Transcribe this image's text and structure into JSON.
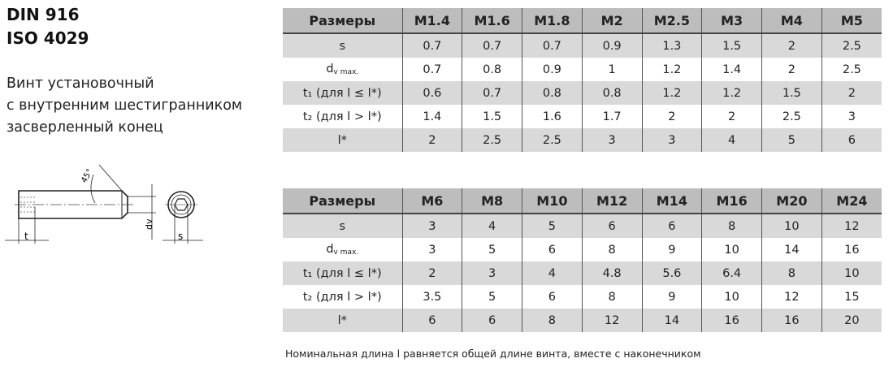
{
  "title_lines": [
    "DIN 916",
    "ISO 4029"
  ],
  "description_lines": [
    "Винт установочный",
    "с внутренним шестигранником",
    "засверленный конец"
  ],
  "drawing": {
    "angle_label": "45°",
    "dim_t": "t",
    "dim_dv": "dv",
    "dim_s": "s"
  },
  "tables": [
    {
      "headers": [
        "Размеры",
        "M1.4",
        "M1.6",
        "M1.8",
        "M2",
        "M2.5",
        "M3",
        "M4",
        "M5"
      ],
      "rows": [
        {
          "label": "s",
          "label_sub": "",
          "values": [
            "0.7",
            "0.7",
            "0.7",
            "0.9",
            "1.3",
            "1.5",
            "2",
            "2.5"
          ]
        },
        {
          "label": "d",
          "label_sub": "v max.",
          "values": [
            "0.7",
            "0.8",
            "0.9",
            "1",
            "1.2",
            "1.4",
            "2",
            "2.5"
          ]
        },
        {
          "label": "t₁ (для l ≤ l*)",
          "label_sub": "",
          "values": [
            "0.6",
            "0.7",
            "0.8",
            "0.8",
            "1.2",
            "1.2",
            "1.5",
            "2"
          ]
        },
        {
          "label": "t₂ (для l > l*)",
          "label_sub": "",
          "values": [
            "1.4",
            "1.5",
            "1.6",
            "1.7",
            "2",
            "2",
            "2.5",
            "3"
          ]
        },
        {
          "label": "l*",
          "label_sub": "",
          "values": [
            "2",
            "2.5",
            "2.5",
            "3",
            "3",
            "4",
            "5",
            "6"
          ]
        }
      ]
    },
    {
      "headers": [
        "Размеры",
        "M6",
        "M8",
        "M10",
        "M12",
        "M14",
        "M16",
        "M20",
        "M24"
      ],
      "rows": [
        {
          "label": "s",
          "label_sub": "",
          "values": [
            "3",
            "4",
            "5",
            "6",
            "6",
            "8",
            "10",
            "12"
          ]
        },
        {
          "label": "d",
          "label_sub": "v max.",
          "values": [
            "3",
            "5",
            "6",
            "8",
            "9",
            "10",
            "14",
            "16"
          ]
        },
        {
          "label": "t₁ (для l ≤ l*)",
          "label_sub": "",
          "values": [
            "2",
            "3",
            "4",
            "4.8",
            "5.6",
            "6.4",
            "8",
            "10"
          ]
        },
        {
          "label": "t₂ (для l > l*)",
          "label_sub": "",
          "values": [
            "3.5",
            "5",
            "6",
            "8",
            "9",
            "10",
            "12",
            "15"
          ]
        },
        {
          "label": "l*",
          "label_sub": "",
          "values": [
            "6",
            "6",
            "8",
            "12",
            "14",
            "16",
            "16",
            "20"
          ]
        }
      ]
    }
  ],
  "note": "Номинальная длина l равняется общей длине винта, вместе с наконечником",
  "colors": {
    "header_bg": "#bdbdbd",
    "stripe_bg": "#d9d9d9"
  }
}
